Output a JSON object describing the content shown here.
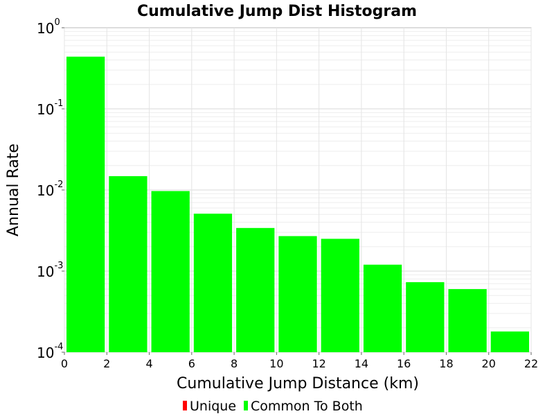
{
  "chart_data": {
    "type": "bar",
    "title": "Cumulative Jump Dist Histogram",
    "xlabel": "Cumulative Jump Distance (km)",
    "ylabel": "Annual Rate",
    "xlim": [
      0,
      22
    ],
    "ylim": [
      0.0001,
      1
    ],
    "yscale": "log",
    "grid": true,
    "x_ticks": [
      "0",
      "2",
      "4",
      "6",
      "8",
      "10",
      "12",
      "14",
      "16",
      "18",
      "20",
      "22"
    ],
    "y_ticks": [
      {
        "base": "10",
        "exp": "0",
        "value": 1
      },
      {
        "base": "10",
        "exp": "-1",
        "value": 0.1
      },
      {
        "base": "10",
        "exp": "-2",
        "value": 0.01
      },
      {
        "base": "10",
        "exp": "-3",
        "value": 0.001
      },
      {
        "base": "10",
        "exp": "-4",
        "value": 0.0001
      }
    ],
    "bin_width": 2,
    "series": [
      {
        "name": "Unique",
        "color": "#ff0000",
        "bins": [],
        "values": []
      },
      {
        "name": "Common To Both",
        "color": "#00ff00",
        "bins": [
          1,
          3,
          5,
          7,
          9,
          11,
          13,
          15,
          17,
          19,
          21
        ],
        "values": [
          0.44,
          0.0148,
          0.0097,
          0.0051,
          0.0034,
          0.0027,
          0.0025,
          0.0012,
          0.00073,
          0.0006,
          0.00018
        ]
      }
    ],
    "legend": [
      "Unique",
      "Common To Both"
    ],
    "legend_position": "bottom"
  }
}
